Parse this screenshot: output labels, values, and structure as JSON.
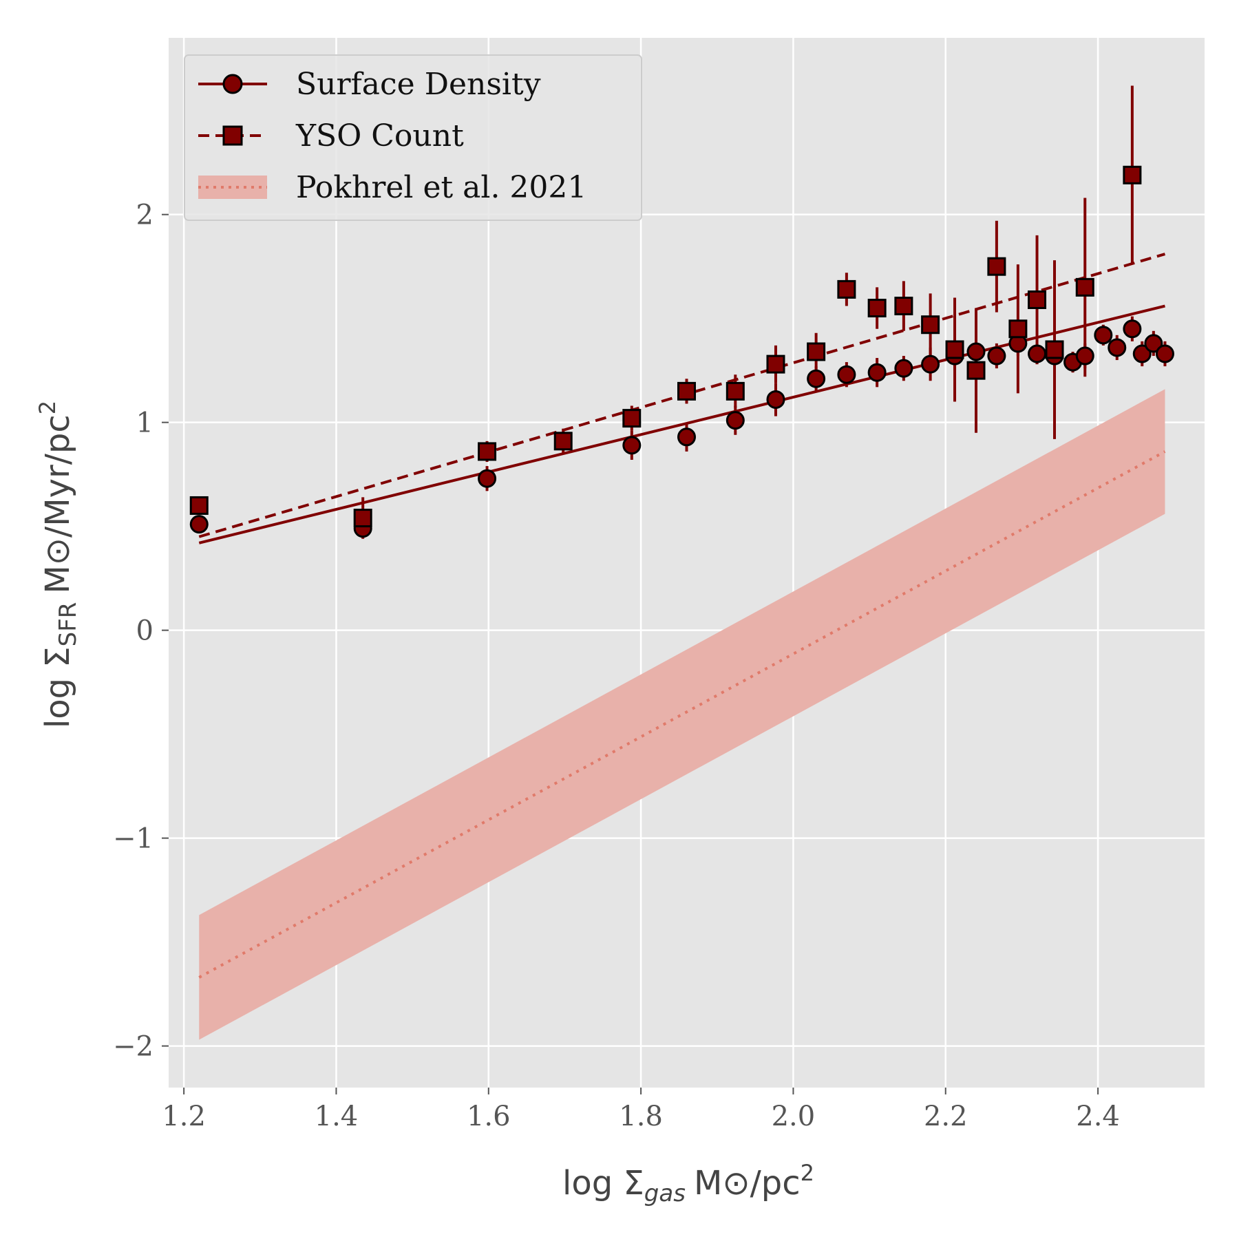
{
  "chart_data": {
    "type": "scatter",
    "xlabel": {
      "main": "log Σ",
      "sub": "gas",
      "unit": "M⊙/pc",
      "sup": "2"
    },
    "ylabel": {
      "main": "log Σ",
      "sub": "SFR",
      "unit": "M⊙/Myr/pc",
      "sup": "2"
    },
    "xlim": [
      1.18,
      2.54
    ],
    "ylim": [
      -2.2,
      2.85
    ],
    "xticks": [
      1.2,
      1.4,
      1.6,
      1.8,
      2.0,
      2.2,
      2.4
    ],
    "xtick_labels": [
      "1.2",
      "1.4",
      "1.6",
      "1.8",
      "2.0",
      "2.2",
      "2.4"
    ],
    "yticks": [
      -2,
      -1,
      0,
      1,
      2
    ],
    "ytick_labels": [
      "−2",
      "−1",
      "0",
      "1",
      "2"
    ],
    "grid": true,
    "legend_position": "top-left",
    "colors": {
      "series": "#800000",
      "reference": "#e07a6a",
      "band": "#e8b1aa",
      "plot_bg": "#e5e5e5"
    },
    "series": [
      {
        "name": "Surface Density",
        "marker": "circle",
        "line": "solid",
        "x": [
          1.22,
          1.435,
          1.598,
          1.788,
          1.86,
          1.924,
          1.977,
          2.03,
          2.07,
          2.11,
          2.145,
          2.18,
          2.212,
          2.24,
          2.267,
          2.295,
          2.32,
          2.343,
          2.367,
          2.383,
          2.407,
          2.425,
          2.445,
          2.458,
          2.473,
          2.488
        ],
        "y": [
          0.51,
          0.49,
          0.73,
          0.89,
          0.93,
          1.01,
          1.11,
          1.21,
          1.23,
          1.24,
          1.26,
          1.28,
          1.32,
          1.34,
          1.32,
          1.38,
          1.33,
          1.32,
          1.29,
          1.32,
          1.42,
          1.36,
          1.45,
          1.33,
          1.38,
          1.33
        ],
        "yerr": [
          0.04,
          0.04,
          0.06,
          0.07,
          0.07,
          0.07,
          0.08,
          0.06,
          0.06,
          0.07,
          0.06,
          0.08,
          0.07,
          0.06,
          0.06,
          0.06,
          0.05,
          0.06,
          0.05,
          0.06,
          0.05,
          0.06,
          0.06,
          0.06,
          0.06,
          0.06
        ],
        "fit": {
          "x": [
            1.22,
            2.488
          ],
          "y": [
            0.42,
            1.56
          ]
        }
      },
      {
        "name": "YSO Count",
        "marker": "square",
        "line": "dashed",
        "x": [
          1.22,
          1.435,
          1.598,
          1.698,
          1.788,
          1.86,
          1.924,
          1.977,
          2.03,
          2.07,
          2.11,
          2.145,
          2.18,
          2.212,
          2.24,
          2.267,
          2.295,
          2.32,
          2.343,
          2.383,
          2.445
        ],
        "y": [
          0.6,
          0.54,
          0.86,
          0.91,
          1.02,
          1.15,
          1.15,
          1.28,
          1.34,
          1.64,
          1.55,
          1.56,
          1.47,
          1.35,
          1.25,
          1.75,
          1.45,
          1.59,
          1.35,
          1.65,
          2.19
        ],
        "yerr": [
          0.04,
          0.1,
          0.05,
          0.06,
          0.06,
          0.06,
          0.08,
          0.09,
          0.09,
          0.08,
          0.1,
          0.12,
          0.15,
          0.25,
          0.3,
          0.22,
          0.31,
          0.31,
          0.43,
          0.43,
          0.43
        ],
        "fit": {
          "x": [
            1.22,
            2.488
          ],
          "y": [
            0.45,
            1.81
          ]
        }
      },
      {
        "name": "Pokhrel et al. 2021",
        "marker": "none",
        "line": "dotted",
        "x": [
          1.22,
          2.488
        ],
        "y": [
          -1.67,
          0.86
        ],
        "band_lower": [
          -1.97,
          0.56
        ],
        "band_upper": [
          -1.37,
          1.16
        ]
      }
    ]
  }
}
